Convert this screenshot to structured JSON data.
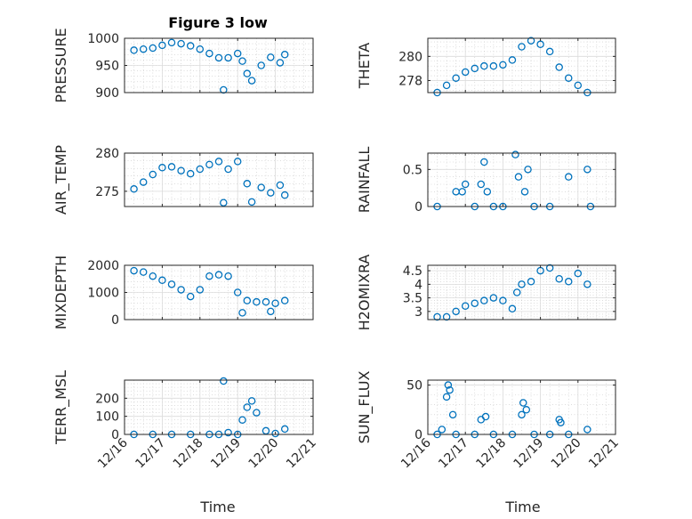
{
  "figure": {
    "title": "Figure 3 low",
    "xlabel": "Time",
    "date_ticks": [
      "12/16",
      "12/17",
      "12/18",
      "12/19",
      "12/20",
      "12/21"
    ],
    "marker_color": "#0072BD",
    "marker": "circle"
  },
  "chart_data": [
    {
      "type": "scatter",
      "ylabel": "PRESSURE",
      "ylim": [
        900,
        1000
      ],
      "yticks": [
        900,
        950,
        1000
      ],
      "xlim": [
        "12/16",
        "12/21"
      ],
      "grid": true,
      "x": [
        "12/16 06:00",
        "12/16 12:00",
        "12/16 18:00",
        "12/17 00:00",
        "12/17 06:00",
        "12/17 12:00",
        "12/17 18:00",
        "12/18 00:00",
        "12/18 06:00",
        "12/18 12:00",
        "12/18 15:00",
        "12/18 18:00",
        "12/19 00:00",
        "12/19 03:00",
        "12/19 06:00",
        "12/19 09:00",
        "12/19 15:00",
        "12/19 21:00",
        "12/20 03:00",
        "12/20 06:00"
      ],
      "y": [
        978,
        980,
        982,
        987,
        992,
        990,
        986,
        980,
        972,
        964,
        905,
        964,
        972,
        958,
        935,
        922,
        950,
        965,
        955,
        970
      ]
    },
    {
      "type": "scatter",
      "ylabel": "THETA",
      "ylim": [
        277,
        281.5
      ],
      "yticks": [
        278,
        280
      ],
      "xlim": [
        "12/16",
        "12/21"
      ],
      "grid": true,
      "x": [
        "12/16 06:00",
        "12/16 12:00",
        "12/16 18:00",
        "12/17 00:00",
        "12/17 06:00",
        "12/17 12:00",
        "12/17 18:00",
        "12/18 00:00",
        "12/18 06:00",
        "12/18 12:00",
        "12/18 18:00",
        "12/19 00:00",
        "12/19 06:00",
        "12/19 12:00",
        "12/19 18:00",
        "12/20 00:00",
        "12/20 06:00"
      ],
      "y": [
        277.0,
        277.6,
        278.2,
        278.7,
        279.0,
        279.2,
        279.2,
        279.3,
        279.7,
        280.8,
        281.3,
        281.0,
        280.4,
        279.1,
        278.2,
        277.6,
        277.0
      ]
    },
    {
      "type": "scatter",
      "ylabel": "AIR_TEMP",
      "ylim": [
        273,
        280
      ],
      "yticks": [
        275,
        280
      ],
      "xlim": [
        "12/16",
        "12/21"
      ],
      "grid": true,
      "x": [
        "12/16 06:00",
        "12/16 12:00",
        "12/16 18:00",
        "12/17 00:00",
        "12/17 06:00",
        "12/17 12:00",
        "12/17 18:00",
        "12/18 00:00",
        "12/18 06:00",
        "12/18 12:00",
        "12/18 15:00",
        "12/18 18:00",
        "12/19 00:00",
        "12/19 06:00",
        "12/19 09:00",
        "12/19 15:00",
        "12/19 21:00",
        "12/20 03:00",
        "12/20 06:00"
      ],
      "y": [
        275.3,
        276.2,
        277.2,
        278.1,
        278.2,
        277.7,
        277.3,
        277.9,
        278.5,
        278.9,
        273.5,
        277.9,
        278.9,
        276.0,
        273.6,
        275.5,
        274.8,
        275.8,
        274.5
      ]
    },
    {
      "type": "scatter",
      "ylabel": "RAINFALL",
      "ylim": [
        0,
        0.72
      ],
      "yticks": [
        0,
        0.5
      ],
      "xlim": [
        "12/16",
        "12/21"
      ],
      "grid": true,
      "x": [
        "12/16 06:00",
        "12/16 18:00",
        "12/16 22:00",
        "12/17 00:00",
        "12/17 06:00",
        "12/17 10:00",
        "12/17 12:00",
        "12/17 14:00",
        "12/17 18:00",
        "12/18 00:00",
        "12/18 08:00",
        "12/18 10:00",
        "12/18 14:00",
        "12/18 16:00",
        "12/18 20:00",
        "12/19 06:00",
        "12/19 18:00",
        "12/20 06:00",
        "12/20 08:00"
      ],
      "y": [
        0,
        0.2,
        0.2,
        0.3,
        0,
        0.3,
        0.6,
        0.2,
        0,
        0,
        0.7,
        0.4,
        0.2,
        0.5,
        0,
        0,
        0.4,
        0.5,
        0
      ]
    },
    {
      "type": "scatter",
      "ylabel": "MIXDEPTH",
      "ylim": [
        0,
        2000
      ],
      "yticks": [
        0,
        1000,
        2000
      ],
      "xlim": [
        "12/16",
        "12/21"
      ],
      "grid": true,
      "x": [
        "12/16 06:00",
        "12/16 12:00",
        "12/16 18:00",
        "12/17 00:00",
        "12/17 06:00",
        "12/17 12:00",
        "12/17 18:00",
        "12/18 00:00",
        "12/18 06:00",
        "12/18 12:00",
        "12/18 18:00",
        "12/19 00:00",
        "12/19 03:00",
        "12/19 06:00",
        "12/19 12:00",
        "12/19 18:00",
        "12/19 21:00",
        "12/20 00:00",
        "12/20 06:00"
      ],
      "y": [
        1800,
        1750,
        1600,
        1450,
        1300,
        1100,
        850,
        1100,
        1600,
        1650,
        1600,
        1000,
        250,
        700,
        650,
        650,
        300,
        600,
        700
      ]
    },
    {
      "type": "scatter",
      "ylabel": "H2OMIXRA",
      "ylim": [
        2.7,
        4.7
      ],
      "yticks": [
        3,
        3.5,
        4,
        4.5
      ],
      "xlim": [
        "12/16",
        "12/21"
      ],
      "grid": true,
      "x": [
        "12/16 06:00",
        "12/16 12:00",
        "12/16 18:00",
        "12/17 00:00",
        "12/17 06:00",
        "12/17 12:00",
        "12/17 18:00",
        "12/18 00:00",
        "12/18 06:00",
        "12/18 09:00",
        "12/18 12:00",
        "12/18 18:00",
        "12/19 00:00",
        "12/19 06:00",
        "12/19 12:00",
        "12/19 18:00",
        "12/20 00:00",
        "12/20 06:00"
      ],
      "y": [
        2.8,
        2.8,
        3.0,
        3.2,
        3.3,
        3.4,
        3.5,
        3.4,
        3.1,
        3.7,
        4.0,
        4.1,
        4.5,
        4.6,
        4.2,
        4.1,
        4.4,
        4.0
      ]
    },
    {
      "type": "scatter",
      "ylabel": "TERR_MSL",
      "ylim": [
        0,
        300
      ],
      "yticks": [
        0,
        100,
        200
      ],
      "xlim": [
        "12/16",
        "12/21"
      ],
      "grid": true,
      "x": [
        "12/16 06:00",
        "12/16 18:00",
        "12/17 06:00",
        "12/17 18:00",
        "12/18 06:00",
        "12/18 12:00",
        "12/18 15:00",
        "12/18 18:00",
        "12/19 00:00",
        "12/19 03:00",
        "12/19 06:00",
        "12/19 09:00",
        "12/19 12:00",
        "12/19 18:00",
        "12/20 00:00",
        "12/20 06:00"
      ],
      "y": [
        0,
        0,
        0,
        0,
        0,
        0,
        295,
        10,
        0,
        80,
        150,
        185,
        120,
        20,
        5,
        30
      ]
    },
    {
      "type": "scatter",
      "ylabel": "SUN_FLUX",
      "ylim": [
        0,
        55
      ],
      "yticks": [
        0,
        50
      ],
      "xlim": [
        "12/16",
        "12/21"
      ],
      "grid": true,
      "x": [
        "12/16 06:00",
        "12/16 09:00",
        "12/16 12:00",
        "12/16 13:00",
        "12/16 14:00",
        "12/16 16:00",
        "12/16 18:00",
        "12/17 06:00",
        "12/17 10:00",
        "12/17 13:00",
        "12/17 18:00",
        "12/18 06:00",
        "12/18 12:00",
        "12/18 13:00",
        "12/18 15:00",
        "12/18 20:00",
        "12/19 06:00",
        "12/19 12:00",
        "12/19 13:00",
        "12/19 18:00",
        "12/20 06:00"
      ],
      "y": [
        0,
        5,
        38,
        50,
        45,
        20,
        0,
        0,
        15,
        18,
        0,
        0,
        20,
        32,
        25,
        0,
        0,
        15,
        12,
        0,
        5
      ]
    }
  ]
}
